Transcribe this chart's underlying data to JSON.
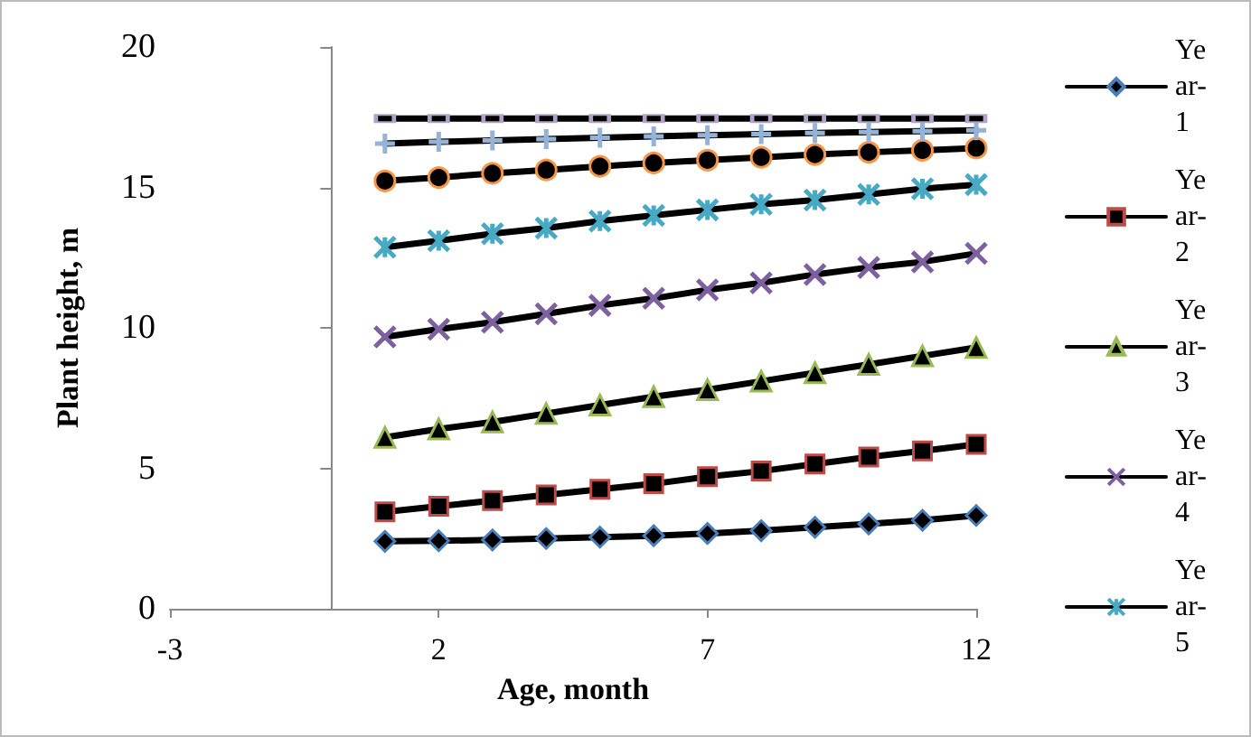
{
  "chart_data": {
    "type": "line",
    "xlabel": "Age, month",
    "ylabel": "Plant height, m",
    "x": [
      1,
      2,
      3,
      4,
      5,
      6,
      7,
      8,
      9,
      10,
      11,
      12
    ],
    "xlim": [
      -3,
      12
    ],
    "xticks": [
      -3,
      2,
      7,
      12
    ],
    "ylim": [
      0,
      20
    ],
    "yticks": [
      0,
      5,
      10,
      15,
      20
    ],
    "grid": false,
    "legend": "right",
    "line_style": "solid",
    "series": [
      {
        "name": "Year-1",
        "color": "#4a7ebb",
        "marker": "diamond",
        "values": [
          2.4,
          2.42,
          2.45,
          2.5,
          2.55,
          2.6,
          2.68,
          2.78,
          2.9,
          3.02,
          3.15,
          3.32
        ]
      },
      {
        "name": "Year-2",
        "color": "#be4b48",
        "marker": "square",
        "values": [
          3.45,
          3.65,
          3.85,
          4.05,
          4.25,
          4.45,
          4.7,
          4.9,
          5.15,
          5.4,
          5.62,
          5.85
        ]
      },
      {
        "name": "Year-3",
        "color": "#98b954",
        "marker": "triangle",
        "values": [
          6.1,
          6.4,
          6.65,
          6.95,
          7.25,
          7.55,
          7.8,
          8.1,
          8.4,
          8.7,
          9.0,
          9.3
        ]
      },
      {
        "name": "Year-4",
        "color": "#7d60a0",
        "marker": "cross",
        "values": [
          9.68,
          9.95,
          10.2,
          10.5,
          10.8,
          11.05,
          11.35,
          11.6,
          11.9,
          12.15,
          12.35,
          12.65
        ]
      },
      {
        "name": "Year-5",
        "color": "#46aac5",
        "marker": "cross",
        "values": [
          12.87,
          13.1,
          13.35,
          13.55,
          13.8,
          14.0,
          14.2,
          14.4,
          14.55,
          14.75,
          14.95,
          15.1
        ]
      },
      {
        "color": "#f79646",
        "marker": "circle",
        "values": [
          15.23,
          15.35,
          15.5,
          15.62,
          15.75,
          15.87,
          15.97,
          16.07,
          16.17,
          16.25,
          16.32,
          16.4
        ]
      },
      {
        "color": "#95b3d7",
        "marker": "cross",
        "values": [
          16.56,
          16.62,
          16.67,
          16.72,
          16.77,
          16.82,
          16.86,
          16.9,
          16.94,
          16.97,
          17.0,
          17.03
        ]
      },
      {
        "color": "#b3a2c7",
        "marker": "square",
        "values": [
          17.45,
          17.45,
          17.45,
          17.45,
          17.45,
          17.45,
          17.45,
          17.45,
          17.45,
          17.45,
          17.45,
          17.45
        ]
      }
    ]
  }
}
